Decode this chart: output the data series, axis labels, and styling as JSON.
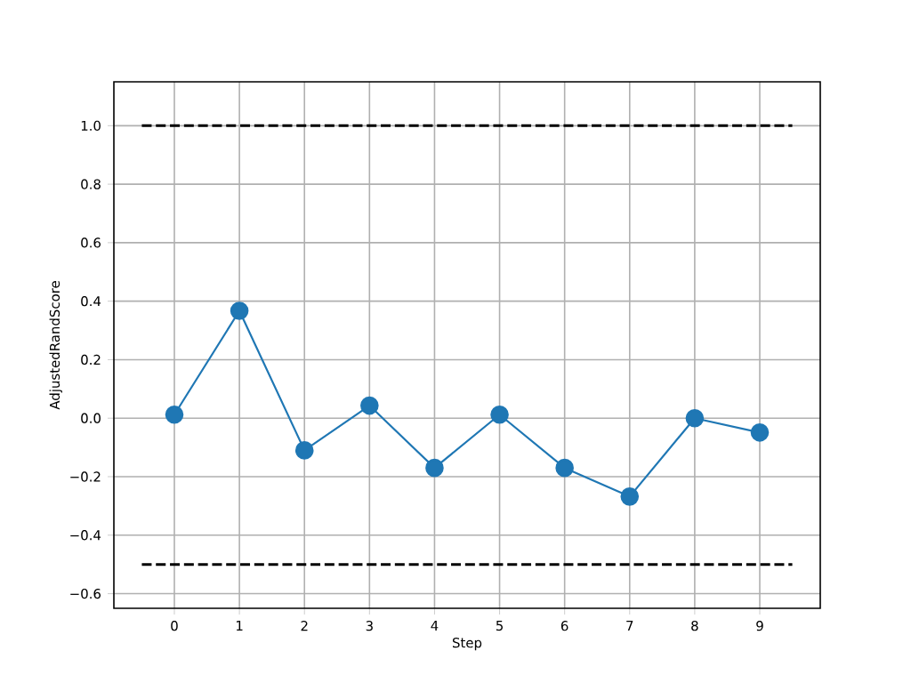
{
  "chart_data": {
    "type": "line",
    "xlabel": "Step",
    "ylabel": "AdjustedRandScore",
    "xlim": [
      -0.93,
      9.93
    ],
    "ylim": [
      -0.65,
      1.15
    ],
    "xticks": [
      0,
      1,
      2,
      3,
      4,
      5,
      6,
      7,
      8,
      9
    ],
    "yticks": [
      {
        "value": -0.6,
        "label": "−0.6"
      },
      {
        "value": -0.4,
        "label": "−0.4"
      },
      {
        "value": -0.2,
        "label": "−0.2"
      },
      {
        "value": 0.0,
        "label": "0.0"
      },
      {
        "value": 0.2,
        "label": "0.2"
      },
      {
        "value": 0.4,
        "label": "0.4"
      },
      {
        "value": 0.6,
        "label": "0.6"
      },
      {
        "value": 0.8,
        "label": "0.8"
      },
      {
        "value": 1.0,
        "label": "1.0"
      }
    ],
    "grid": true,
    "series": [
      {
        "color": "#1f77b4",
        "marker": "circle",
        "line_style": "solid",
        "x": [
          0,
          1,
          2,
          3,
          4,
          5,
          6,
          7,
          8,
          9
        ],
        "values": [
          0.012,
          0.367,
          -0.11,
          0.043,
          -0.17,
          0.012,
          -0.17,
          -0.268,
          0.0,
          -0.049
        ]
      },
      {
        "color": "#000000",
        "marker": "none",
        "line_style": "dashed",
        "x": [
          -0.5,
          9.5
        ],
        "values": [
          1.0,
          1.0
        ]
      },
      {
        "color": "#000000",
        "marker": "none",
        "line_style": "dashed",
        "x": [
          -0.5,
          9.5
        ],
        "values": [
          -0.5,
          -0.5
        ]
      }
    ]
  }
}
